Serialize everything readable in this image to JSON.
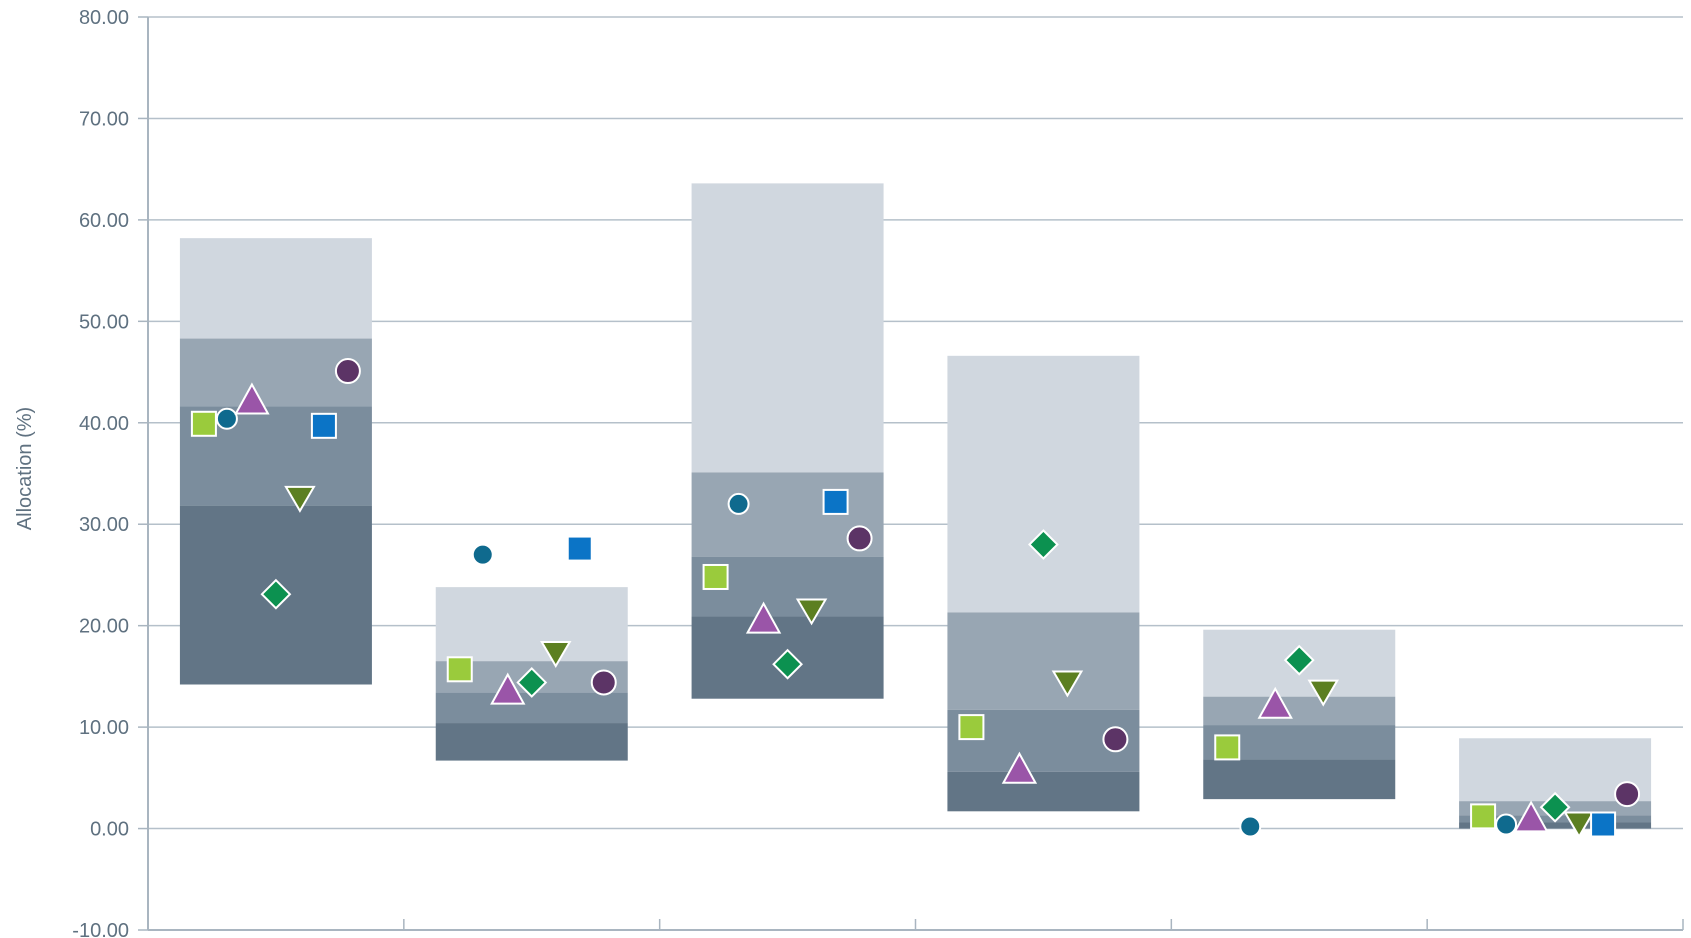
{
  "chart_data": {
    "type": "scatter",
    "title": "",
    "ylabel": "Allocation (%)",
    "xlabel": "",
    "ylim": [
      -10,
      80
    ],
    "y_ticks": [
      "80.00",
      "70.00",
      "60.00",
      "50.00",
      "40.00",
      "30.00",
      "20.00",
      "10.00",
      "0.00",
      "-10.00"
    ],
    "y_tick_values": [
      80,
      70,
      60,
      50,
      40,
      30,
      20,
      10,
      0,
      -10
    ],
    "grid": true,
    "legend": "none",
    "category_count": 6,
    "colors": {
      "band_light": "#d0d7df",
      "band_mid": "#98a6b3",
      "band_dark": "#7b8d9d",
      "band_darkest": "#627586",
      "axis": "#a9b5c0",
      "grid": "#b5c0ca",
      "marker_outline": "#ffffff"
    },
    "range_bands": [
      {
        "category": 1,
        "bottom": 14.2,
        "p25": 31.8,
        "median": 41.6,
        "p75": 48.3,
        "top": 58.2
      },
      {
        "category": 2,
        "bottom": 6.7,
        "p25": 10.4,
        "median": 13.4,
        "p75": 16.5,
        "top": 23.8
      },
      {
        "category": 3,
        "bottom": 12.8,
        "p25": 20.9,
        "median": 26.8,
        "p75": 35.1,
        "top": 63.6
      },
      {
        "category": 4,
        "bottom": 1.7,
        "p25": 5.6,
        "median": 11.7,
        "p75": 21.3,
        "top": 46.6
      },
      {
        "category": 5,
        "bottom": 2.9,
        "p25": 6.8,
        "median": 10.2,
        "p75": 13.0,
        "top": 19.6
      },
      {
        "category": 6,
        "bottom": 0.0,
        "p25": 0.6,
        "median": 1.3,
        "p75": 2.7,
        "top": 8.9
      }
    ],
    "series": [
      {
        "marker": "square",
        "color": "#9acb3c",
        "values": [
          39.9,
          15.7,
          24.8,
          10.0,
          8.0,
          1.2
        ]
      },
      {
        "marker": "circle-small",
        "color": "#0f6a8e",
        "values": [
          40.4,
          27.0,
          32.0,
          null,
          0.2,
          0.4
        ]
      },
      {
        "marker": "triangle-up",
        "color": "#9a55a8",
        "values": [
          42.1,
          13.5,
          20.5,
          5.7,
          12.1,
          0.9
        ]
      },
      {
        "marker": "diamond",
        "color": "#0c9150",
        "values": [
          23.1,
          14.4,
          16.2,
          28.0,
          16.6,
          2.1
        ]
      },
      {
        "marker": "triangle-down",
        "color": "#5c7f21",
        "values": [
          32.6,
          17.3,
          21.5,
          14.4,
          13.5,
          0.5
        ]
      },
      {
        "marker": "square",
        "color": "#0b74c6",
        "values": [
          39.7,
          27.6,
          32.2,
          null,
          null,
          0.4
        ]
      },
      {
        "marker": "circle",
        "color": "#5c3466",
        "values": [
          45.1,
          14.4,
          28.6,
          8.8,
          null,
          3.4
        ]
      }
    ]
  }
}
